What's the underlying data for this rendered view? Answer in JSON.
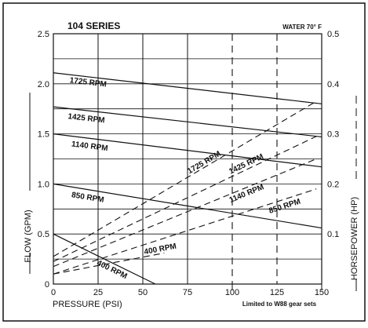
{
  "chart_data": {
    "type": "line",
    "title": "104 SERIES",
    "subtitle": "WATER 70° F",
    "xlabel": "PRESSURE (PSI)",
    "ylabel": "FLOW (GPM)",
    "y2label": "HORSEPOWER (HP)",
    "xlim": [
      0,
      150
    ],
    "ylim": [
      0,
      2.5
    ],
    "y2lim": [
      0,
      0.5
    ],
    "x_ticks": [
      "0",
      "25",
      "50",
      "75",
      "100",
      "125",
      "150"
    ],
    "y_ticks": [
      "0",
      "0.5",
      "1.0",
      "1.5",
      "2.0",
      "2.5"
    ],
    "y2_ticks": [
      "0.1",
      "0.2",
      "0.3",
      "0.4",
      "0.5"
    ],
    "grid": true,
    "note": "Limited to W88 gear sets",
    "limit_lines_x": [
      100,
      125
    ],
    "flow_series": [
      {
        "name": "1725 RPM",
        "x": [
          0,
          150
        ],
        "y": [
          2.11,
          1.8
        ]
      },
      {
        "name": "1425 RPM",
        "x": [
          0,
          150
        ],
        "y": [
          1.77,
          1.47
        ]
      },
      {
        "name": "1140 RPM",
        "x": [
          0,
          150
        ],
        "y": [
          1.5,
          1.17
        ]
      },
      {
        "name": "850 RPM",
        "x": [
          0,
          150
        ],
        "y": [
          1.0,
          0.56
        ]
      },
      {
        "name": "400 RPM",
        "x": [
          0,
          57
        ],
        "y": [
          0.5,
          0.0
        ]
      }
    ],
    "horsepower_series": [
      {
        "name": "1725 RPM",
        "x": [
          0,
          147
        ],
        "y": [
          0.055,
          0.365
        ]
      },
      {
        "name": "1425 RPM",
        "x": [
          0,
          147
        ],
        "y": [
          0.045,
          0.295
        ]
      },
      {
        "name": "1140 RPM",
        "x": [
          0,
          147
        ],
        "y": [
          0.035,
          0.25
        ]
      },
      {
        "name": "850 RPM",
        "x": [
          0,
          147
        ],
        "y": [
          0.02,
          0.19
        ]
      },
      {
        "name": "400 RPM",
        "x": [
          0,
          62
        ],
        "y": [
          0.02,
          0.062
        ]
      }
    ]
  }
}
